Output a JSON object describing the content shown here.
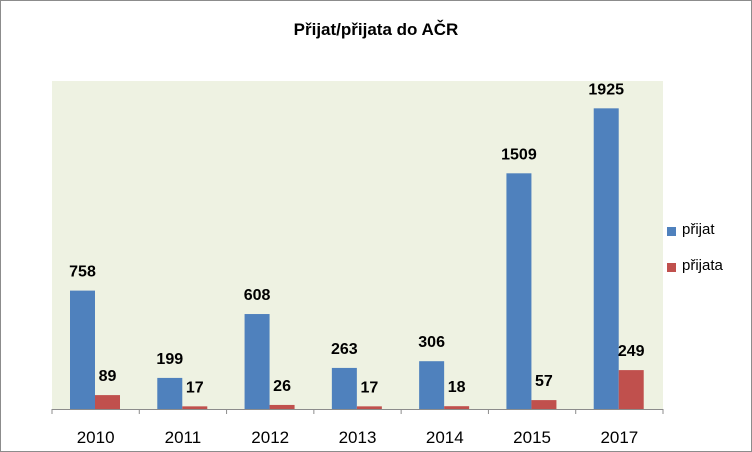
{
  "chart_data": {
    "type": "bar",
    "title": "Přijat/přijata  do AČR",
    "categories": [
      "2010",
      "2011",
      "2012",
      "2013",
      "2014",
      "2015",
      "2017"
    ],
    "series": [
      {
        "name": "přijat",
        "color": "#4f81bd",
        "values": [
          758,
          199,
          608,
          263,
          306,
          1509,
          1925
        ]
      },
      {
        "name": "přijata",
        "color": "#c0504d",
        "values": [
          89,
          17,
          26,
          17,
          18,
          57,
          249
        ]
      }
    ],
    "ylim": [
      0,
      2100
    ],
    "plot_background": "#eef2e2",
    "grid": false,
    "data_labels": true,
    "legend_position": "right"
  }
}
